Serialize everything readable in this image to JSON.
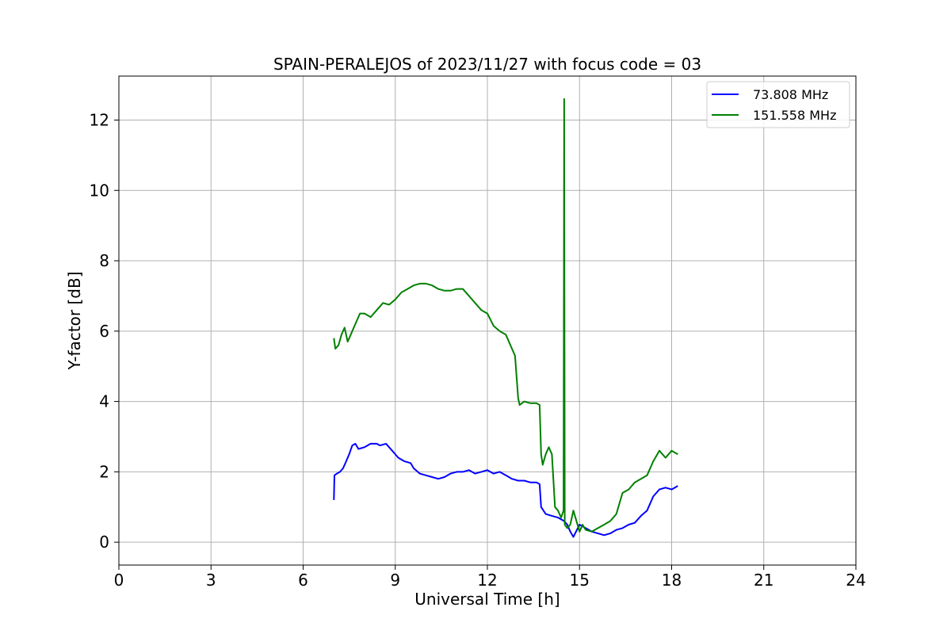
{
  "chart_data": {
    "type": "line",
    "title": "SPAIN-PERALEJOS of 2023/11/27 with focus code = 03",
    "xlabel": "Universal Time [h]",
    "ylabel": "Y-factor [dB]",
    "xlim": [
      0,
      24
    ],
    "ylim": [
      -0.65,
      13.25
    ],
    "xticks": [
      0,
      3,
      6,
      9,
      12,
      15,
      18,
      21,
      24
    ],
    "yticks": [
      0,
      2,
      4,
      6,
      8,
      10,
      12
    ],
    "grid": true,
    "legend_position": "top-right",
    "series": [
      {
        "name": "73.808 MHz",
        "color": "#0000ff",
        "x": [
          7.0,
          7.02,
          7.1,
          7.2,
          7.3,
          7.4,
          7.5,
          7.6,
          7.7,
          7.8,
          8.0,
          8.2,
          8.4,
          8.5,
          8.7,
          8.9,
          9.1,
          9.3,
          9.5,
          9.6,
          9.8,
          10.0,
          10.2,
          10.4,
          10.6,
          10.8,
          11.0,
          11.2,
          11.4,
          11.6,
          11.8,
          12.0,
          12.2,
          12.4,
          12.6,
          12.8,
          13.0,
          13.2,
          13.4,
          13.6,
          13.7,
          13.75,
          13.9,
          14.1,
          14.3,
          14.5,
          14.6,
          14.7,
          14.8,
          15.0,
          15.2,
          15.4,
          15.6,
          15.8,
          16.0,
          16.2,
          16.4,
          16.6,
          16.8,
          17.0,
          17.2,
          17.4,
          17.6,
          17.8,
          18.0,
          18.2
        ],
        "y": [
          1.2,
          1.9,
          1.95,
          2.0,
          2.1,
          2.3,
          2.5,
          2.75,
          2.8,
          2.65,
          2.7,
          2.8,
          2.8,
          2.75,
          2.8,
          2.6,
          2.4,
          2.3,
          2.25,
          2.1,
          1.95,
          1.9,
          1.85,
          1.8,
          1.85,
          1.95,
          2.0,
          2.0,
          2.05,
          1.95,
          2.0,
          2.05,
          1.95,
          2.0,
          1.9,
          1.8,
          1.75,
          1.75,
          1.7,
          1.7,
          1.65,
          1.0,
          0.8,
          0.75,
          0.7,
          0.6,
          0.5,
          0.3,
          0.15,
          0.5,
          0.4,
          0.3,
          0.25,
          0.2,
          0.25,
          0.35,
          0.4,
          0.5,
          0.55,
          0.75,
          0.9,
          1.3,
          1.5,
          1.55,
          1.5,
          1.6
        ]
      },
      {
        "name": "151.558 MHz",
        "color": "#008000",
        "x": [
          7.0,
          7.05,
          7.15,
          7.25,
          7.35,
          7.45,
          7.55,
          7.65,
          7.75,
          7.85,
          8.0,
          8.2,
          8.4,
          8.6,
          8.8,
          9.0,
          9.2,
          9.4,
          9.6,
          9.8,
          10.0,
          10.2,
          10.4,
          10.6,
          10.8,
          11.0,
          11.2,
          11.4,
          11.6,
          11.8,
          12.0,
          12.2,
          12.4,
          12.6,
          12.8,
          12.9,
          13.0,
          13.05,
          13.2,
          13.4,
          13.6,
          13.7,
          13.75,
          13.8,
          13.9,
          14.0,
          14.1,
          14.2,
          14.3,
          14.4,
          14.48,
          14.5,
          14.52,
          14.6,
          14.7,
          14.8,
          14.9,
          15.0,
          15.1,
          15.2,
          15.4,
          15.6,
          15.8,
          16.0,
          16.2,
          16.4,
          16.6,
          16.8,
          17.0,
          17.2,
          17.4,
          17.6,
          17.8,
          18.0,
          18.2
        ],
        "y": [
          5.8,
          5.5,
          5.6,
          5.9,
          6.1,
          5.7,
          5.9,
          6.1,
          6.3,
          6.5,
          6.5,
          6.4,
          6.6,
          6.8,
          6.75,
          6.9,
          7.1,
          7.2,
          7.3,
          7.35,
          7.35,
          7.3,
          7.2,
          7.15,
          7.15,
          7.2,
          7.2,
          7.0,
          6.8,
          6.6,
          6.5,
          6.15,
          6.0,
          5.9,
          5.5,
          5.3,
          4.1,
          3.9,
          4.0,
          3.95,
          3.95,
          3.9,
          2.5,
          2.2,
          2.5,
          2.7,
          2.5,
          1.0,
          0.9,
          0.7,
          0.9,
          12.6,
          0.5,
          0.4,
          0.5,
          0.9,
          0.6,
          0.3,
          0.5,
          0.35,
          0.3,
          0.4,
          0.5,
          0.6,
          0.8,
          1.4,
          1.5,
          1.7,
          1.8,
          1.9,
          2.3,
          2.6,
          2.4,
          2.6,
          2.5
        ]
      }
    ]
  }
}
